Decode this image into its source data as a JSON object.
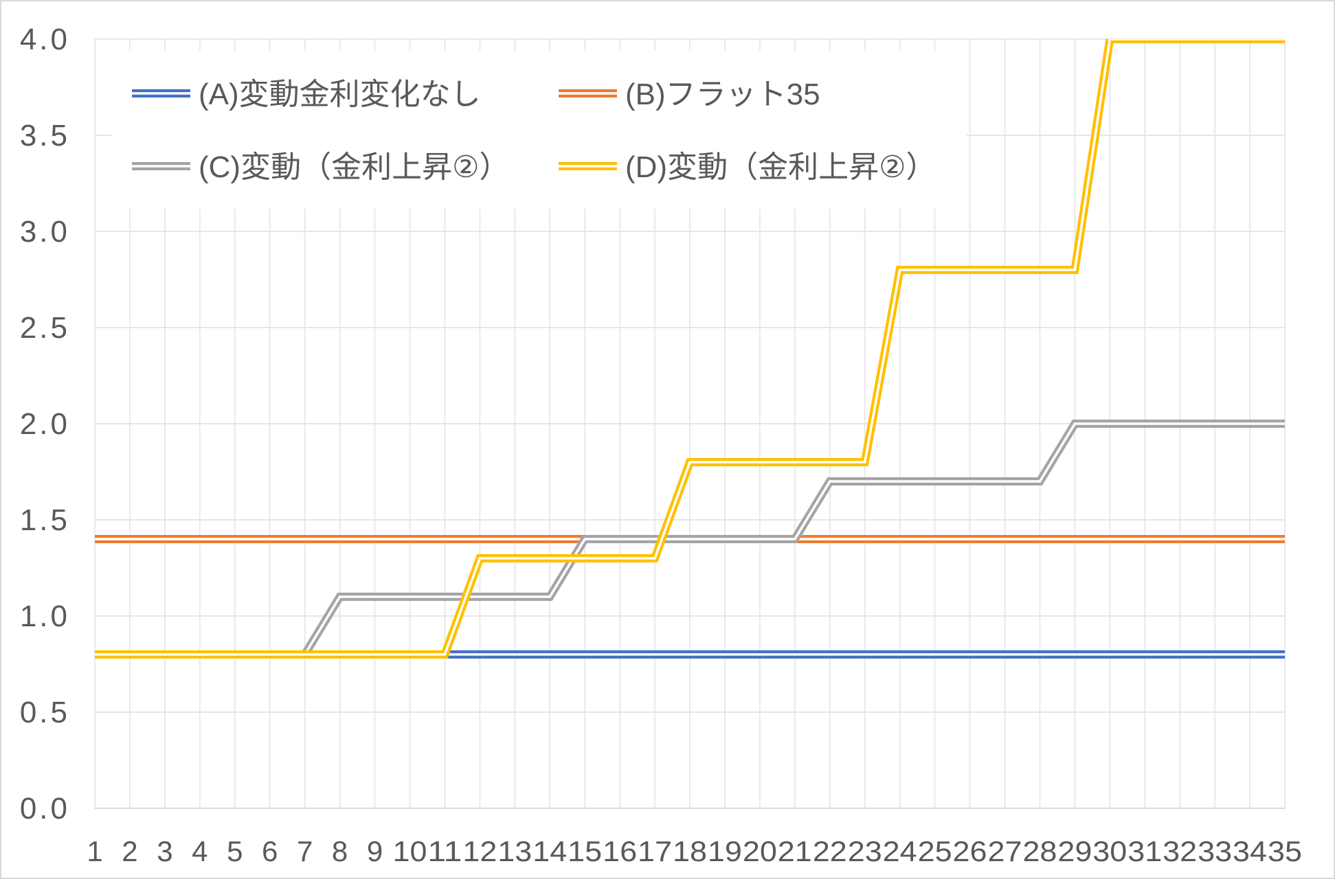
{
  "chart_data": {
    "type": "line",
    "title": "",
    "xlabel": "",
    "ylabel": "",
    "categories": [
      "1",
      "2",
      "3",
      "4",
      "5",
      "6",
      "7",
      "8",
      "9",
      "10",
      "11",
      "12",
      "13",
      "14",
      "15",
      "16",
      "17",
      "18",
      "19",
      "20",
      "21",
      "22",
      "23",
      "24",
      "25",
      "26",
      "27",
      "28",
      "29",
      "30",
      "31",
      "32",
      "33",
      "34",
      "35"
    ],
    "ylim": [
      0,
      4.0
    ],
    "yticks": [
      "0.0",
      "0.5",
      "1.0",
      "1.5",
      "2.0",
      "2.5",
      "3.0",
      "3.5",
      "4.0"
    ],
    "grid": true,
    "legend_position": "top-left",
    "series": [
      {
        "name": "(A)変動金利変化なし",
        "color": "#4472c4",
        "values": [
          0.8,
          0.8,
          0.8,
          0.8,
          0.8,
          0.8,
          0.8,
          0.8,
          0.8,
          0.8,
          0.8,
          0.8,
          0.8,
          0.8,
          0.8,
          0.8,
          0.8,
          0.8,
          0.8,
          0.8,
          0.8,
          0.8,
          0.8,
          0.8,
          0.8,
          0.8,
          0.8,
          0.8,
          0.8,
          0.8,
          0.8,
          0.8,
          0.8,
          0.8,
          0.8
        ]
      },
      {
        "name": "(B)フラット35",
        "color": "#ed7d31",
        "values": [
          1.4,
          1.4,
          1.4,
          1.4,
          1.4,
          1.4,
          1.4,
          1.4,
          1.4,
          1.4,
          1.4,
          1.4,
          1.4,
          1.4,
          1.4,
          1.4,
          1.4,
          1.4,
          1.4,
          1.4,
          1.4,
          1.4,
          1.4,
          1.4,
          1.4,
          1.4,
          1.4,
          1.4,
          1.4,
          1.4,
          1.4,
          1.4,
          1.4,
          1.4,
          1.4
        ]
      },
      {
        "name": "(C)変動（金利上昇②）",
        "color": "#a5a5a5",
        "values": [
          0.8,
          0.8,
          0.8,
          0.8,
          0.8,
          0.8,
          0.8,
          1.1,
          1.1,
          1.1,
          1.1,
          1.1,
          1.1,
          1.1,
          1.4,
          1.4,
          1.4,
          1.4,
          1.4,
          1.4,
          1.4,
          1.7,
          1.7,
          1.7,
          1.7,
          1.7,
          1.7,
          1.7,
          2.0,
          2.0,
          2.0,
          2.0,
          2.0,
          2.0,
          2.0
        ]
      },
      {
        "name": "(D)変動（金利上昇②）",
        "color": "#ffc000",
        "values": [
          0.8,
          0.8,
          0.8,
          0.8,
          0.8,
          0.8,
          0.8,
          0.8,
          0.8,
          0.8,
          0.8,
          1.3,
          1.3,
          1.3,
          1.3,
          1.3,
          1.3,
          1.8,
          1.8,
          1.8,
          1.8,
          1.8,
          1.8,
          2.8,
          2.8,
          2.8,
          2.8,
          2.8,
          2.8,
          4.0,
          4.0,
          4.0,
          4.0,
          4.0,
          4.0
        ]
      }
    ]
  }
}
